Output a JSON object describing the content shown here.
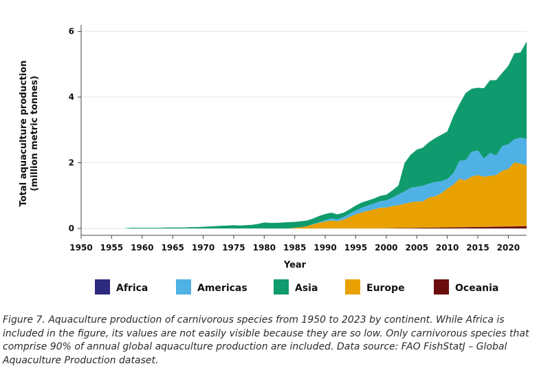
{
  "chart_data": {
    "type": "area",
    "stacked": true,
    "xlabel": "Year",
    "ylabel_line1": "Total aquaculture production",
    "ylabel_line2": "(million metric tonnes)",
    "xlim": [
      1950,
      2023
    ],
    "ylim": [
      0,
      6
    ],
    "x_ticks": [
      1950,
      1955,
      1960,
      1965,
      1970,
      1975,
      1980,
      1985,
      1990,
      1995,
      2000,
      2005,
      2010,
      2015,
      2020
    ],
    "y_ticks": [
      0,
      2,
      4,
      6
    ],
    "grid": "horizontal",
    "legend_position": "bottom",
    "x": [
      1950,
      1951,
      1952,
      1953,
      1954,
      1955,
      1956,
      1957,
      1958,
      1959,
      1960,
      1961,
      1962,
      1963,
      1964,
      1965,
      1966,
      1967,
      1968,
      1969,
      1970,
      1971,
      1972,
      1973,
      1974,
      1975,
      1976,
      1977,
      1978,
      1979,
      1980,
      1981,
      1982,
      1983,
      1984,
      1985,
      1986,
      1987,
      1988,
      1989,
      1990,
      1991,
      1992,
      1993,
      1994,
      1995,
      1996,
      1997,
      1998,
      1999,
      2000,
      2001,
      2002,
      2003,
      2004,
      2005,
      2006,
      2007,
      2008,
      2009,
      2010,
      2011,
      2012,
      2013,
      2014,
      2015,
      2016,
      2017,
      2018,
      2019,
      2020,
      2021,
      2022,
      2023
    ],
    "series": [
      {
        "name": "Oceania",
        "color": "#6b0d0d",
        "values": [
          0,
          0,
          0,
          0,
          0,
          0,
          0,
          0,
          0,
          0,
          0,
          0,
          0,
          0,
          0,
          0,
          0,
          0,
          0,
          0,
          0,
          0,
          0,
          0,
          0,
          0,
          0,
          0,
          0,
          0,
          0,
          0,
          0,
          0,
          0,
          0,
          0,
          0,
          0,
          0,
          0,
          0,
          0,
          0,
          0,
          0,
          0,
          0,
          0,
          0,
          0.005,
          0.007,
          0.01,
          0.012,
          0.015,
          0.018,
          0.021,
          0.024,
          0.026,
          0.028,
          0.03,
          0.032,
          0.035,
          0.038,
          0.04,
          0.042,
          0.045,
          0.048,
          0.051,
          0.054,
          0.057,
          0.06,
          0.065,
          0.07
        ]
      },
      {
        "name": "Africa",
        "color": "#2d2a7f",
        "values": [
          0,
          0,
          0,
          0,
          0,
          0,
          0,
          0,
          0,
          0,
          0,
          0,
          0,
          0,
          0,
          0,
          0,
          0,
          0,
          0,
          0,
          0,
          0,
          0,
          0,
          0,
          0,
          0,
          0,
          0,
          0,
          0,
          0,
          0,
          0,
          0,
          0,
          0,
          0,
          0,
          0,
          0,
          0,
          0,
          0,
          0,
          0,
          0,
          0,
          0,
          0,
          0,
          0,
          0,
          0,
          0.001,
          0.001,
          0.001,
          0.001,
          0.001,
          0.002,
          0.002,
          0.002,
          0.002,
          0.002,
          0.002,
          0.002,
          0.003,
          0.003,
          0.003,
          0.003,
          0.003,
          0.003,
          0.003
        ]
      },
      {
        "name": "Europe",
        "color": "#e8a100",
        "values": [
          0,
          0,
          0,
          0,
          0,
          0,
          0,
          0,
          0,
          0,
          0,
          0,
          0,
          0,
          0,
          0,
          0,
          0,
          0,
          0,
          0,
          0,
          0,
          0,
          0,
          0,
          0,
          0,
          0,
          0,
          0,
          0,
          0,
          0,
          0,
          0.02,
          0.04,
          0.07,
          0.12,
          0.17,
          0.21,
          0.24,
          0.22,
          0.27,
          0.35,
          0.43,
          0.49,
          0.54,
          0.58,
          0.63,
          0.63,
          0.67,
          0.7,
          0.74,
          0.78,
          0.8,
          0.8,
          0.92,
          0.95,
          1.04,
          1.18,
          1.3,
          1.47,
          1.43,
          1.54,
          1.58,
          1.53,
          1.55,
          1.57,
          1.7,
          1.75,
          1.95,
          1.9,
          1.85
        ]
      },
      {
        "name": "Americas",
        "color": "#4fb1e4",
        "values": [
          0,
          0,
          0,
          0,
          0,
          0,
          0,
          0,
          0,
          0,
          0,
          0,
          0,
          0,
          0,
          0,
          0,
          0,
          0,
          0,
          0,
          0,
          0,
          0,
          0,
          0,
          0,
          0,
          0,
          0,
          0,
          0,
          0,
          0,
          0,
          0,
          0,
          0,
          0.01,
          0.02,
          0.04,
          0.06,
          0.06,
          0.08,
          0.1,
          0.12,
          0.14,
          0.16,
          0.18,
          0.2,
          0.22,
          0.26,
          0.33,
          0.38,
          0.44,
          0.45,
          0.48,
          0.42,
          0.44,
          0.37,
          0.29,
          0.35,
          0.55,
          0.61,
          0.75,
          0.75,
          0.55,
          0.7,
          0.6,
          0.75,
          0.75,
          0.7,
          0.8,
          0.8
        ]
      },
      {
        "name": "Asia",
        "color": "#0f9b6e",
        "values": [
          0,
          0,
          0,
          0,
          0,
          0,
          0,
          0,
          0.02,
          0.02,
          0.02,
          0.02,
          0.02,
          0.02,
          0.03,
          0.03,
          0.03,
          0.03,
          0.04,
          0.04,
          0.05,
          0.06,
          0.07,
          0.08,
          0.09,
          0.1,
          0.09,
          0.1,
          0.11,
          0.14,
          0.18,
          0.17,
          0.17,
          0.18,
          0.19,
          0.18,
          0.18,
          0.17,
          0.17,
          0.19,
          0.19,
          0.18,
          0.15,
          0.13,
          0.13,
          0.15,
          0.16,
          0.15,
          0.15,
          0.16,
          0.17,
          0.22,
          0.27,
          0.86,
          1.01,
          1.13,
          1.16,
          1.26,
          1.33,
          1.41,
          1.45,
          1.73,
          1.73,
          2.04,
          1.92,
          1.91,
          2.14,
          2.21,
          2.29,
          2.23,
          2.39,
          2.62,
          2.59,
          2.97
        ]
      }
    ]
  },
  "legend_order": [
    "Africa",
    "Americas",
    "Asia",
    "Europe",
    "Oceania"
  ],
  "caption": "Figure 7. Aquaculture production of carnivorous species from 1950 to 2023 by continent. While Africa is included in the figure, its values are not easily visible because they are so low. Only carnivorous species that comprise 90% of annual global aquaculture production are included. Data source: FAO FishStatJ – Global Aquaculture Production dataset."
}
